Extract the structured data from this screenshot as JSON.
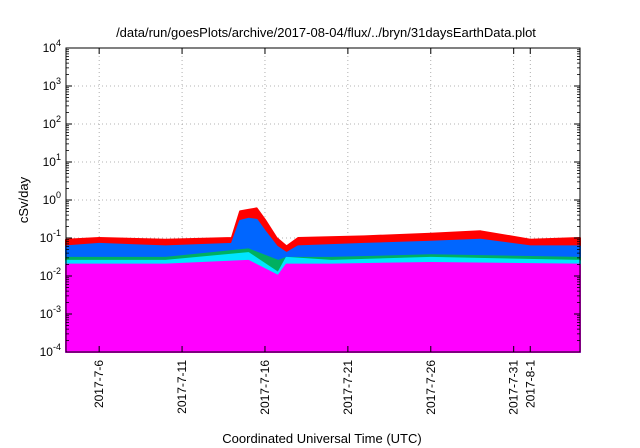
{
  "chart_data": {
    "type": "area",
    "title": "/data/run/goesPlots/archive/2017-08-04/flux/../bryn/31daysEarthData.plot",
    "xlabel": "Coordinated Universal Time (UTC)",
    "ylabel": "cSv/day",
    "yscale": "log",
    "ylim": [
      0.0001,
      10000
    ],
    "xlim": [
      "2017-07-04",
      "2017-08-04"
    ],
    "grid": true,
    "x_ticks": [
      "2017-7-6",
      "2017-7-11",
      "2017-7-16",
      "2017-7-21",
      "2017-7-26",
      "2017-7-31",
      "2017-8-1"
    ],
    "y_ticks": [
      {
        "value": 0.0001,
        "base": "10",
        "exp": "-4"
      },
      {
        "value": 0.001,
        "base": "10",
        "exp": "-3"
      },
      {
        "value": 0.01,
        "base": "10",
        "exp": "-2"
      },
      {
        "value": 0.1,
        "base": "10",
        "exp": "-1"
      },
      {
        "value": 1,
        "base": "10",
        "exp": "0"
      },
      {
        "value": 10,
        "base": "10",
        "exp": "1"
      },
      {
        "value": 100,
        "base": "10",
        "exp": "2"
      },
      {
        "value": 1000,
        "base": "10",
        "exp": "3"
      },
      {
        "value": 10000,
        "base": "10",
        "exp": "4"
      }
    ],
    "series": [
      {
        "color": "#ff0000",
        "x": [
          "2017-07-04",
          "2017-07-06",
          "2017-07-10",
          "2017-07-14",
          "2017-07-14.5",
          "2017-07-15",
          "2017-07-15.5",
          "2017-07-16",
          "2017-07-16.7",
          "2017-07-17.3",
          "2017-07-18",
          "2017-07-22",
          "2017-07-26",
          "2017-07-29",
          "2017-08-01",
          "2017-08-04"
        ],
        "values": [
          0.09,
          0.1,
          0.09,
          0.1,
          0.5,
          0.55,
          0.6,
          0.3,
          0.1,
          0.06,
          0.1,
          0.11,
          0.13,
          0.15,
          0.09,
          0.1
        ]
      },
      {
        "color": "#0066ff",
        "x": [
          "2017-07-04",
          "2017-07-06",
          "2017-07-10",
          "2017-07-14",
          "2017-07-14.5",
          "2017-07-15",
          "2017-07-15.5",
          "2017-07-16",
          "2017-07-16.7",
          "2017-07-17.3",
          "2017-07-18",
          "2017-07-22",
          "2017-07-26",
          "2017-07-29",
          "2017-08-01",
          "2017-08-04"
        ],
        "values": [
          0.06,
          0.07,
          0.06,
          0.07,
          0.28,
          0.32,
          0.3,
          0.15,
          0.06,
          0.04,
          0.06,
          0.07,
          0.08,
          0.09,
          0.06,
          0.06
        ]
      },
      {
        "color": "#00b060",
        "x": [
          "2017-07-04",
          "2017-07-10",
          "2017-07-15",
          "2017-07-16.8",
          "2017-07-17.3",
          "2017-07-20",
          "2017-07-26",
          "2017-08-04"
        ],
        "values": [
          0.03,
          0.03,
          0.05,
          0.025,
          0.03,
          0.03,
          0.035,
          0.03
        ]
      },
      {
        "color": "#00e5ff",
        "x": [
          "2017-07-04",
          "2017-07-10",
          "2017-07-15",
          "2017-07-16.8",
          "2017-07-17.3",
          "2017-07-20",
          "2017-07-26",
          "2017-08-04"
        ],
        "values": [
          0.025,
          0.025,
          0.04,
          0.012,
          0.03,
          0.025,
          0.03,
          0.025
        ]
      },
      {
        "color": "#ff00ff",
        "x": [
          "2017-07-04",
          "2017-07-10",
          "2017-07-15",
          "2017-07-16.8",
          "2017-07-17.3",
          "2017-07-20",
          "2017-07-26",
          "2017-08-04"
        ],
        "values": [
          0.02,
          0.02,
          0.025,
          0.01,
          0.02,
          0.02,
          0.022,
          0.02
        ]
      }
    ],
    "dropouts": {
      "color": "#ff00ff",
      "x": [
        "2017-07-06.7",
        "2017-07-07.0",
        "2017-07-13.6",
        "2017-07-20.7",
        "2017-07-28.0",
        "2017-08-03.0"
      ],
      "value": 0.0001
    }
  }
}
